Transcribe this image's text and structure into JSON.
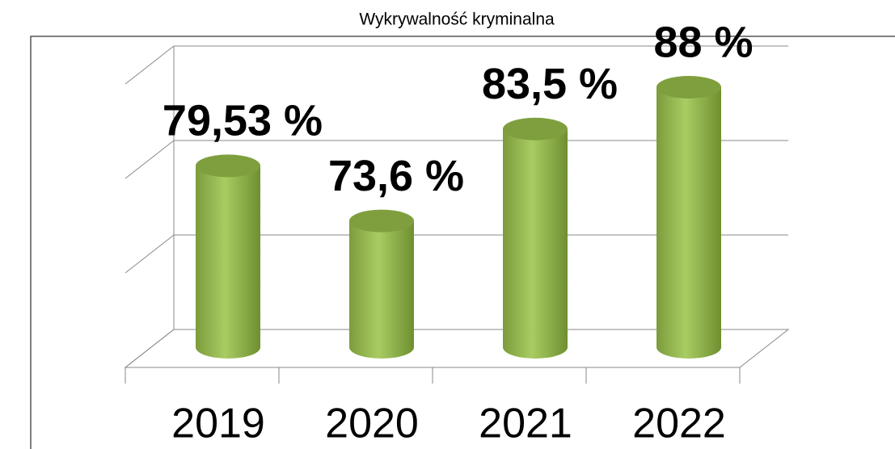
{
  "chart_data": {
    "type": "bar",
    "title": "Wykrywalność kryminalna",
    "categories": [
      "2019",
      "2020",
      "2021",
      "2022"
    ],
    "values": [
      79.53,
      73.6,
      83.5,
      88
    ],
    "value_labels": [
      "79,53 %",
      "73,6 %",
      "83,5 %",
      "88 %"
    ],
    "color": "#9bbb59",
    "ylim": [
      60,
      90
    ],
    "yticks": [
      60,
      70,
      80,
      90
    ],
    "grid": true
  }
}
